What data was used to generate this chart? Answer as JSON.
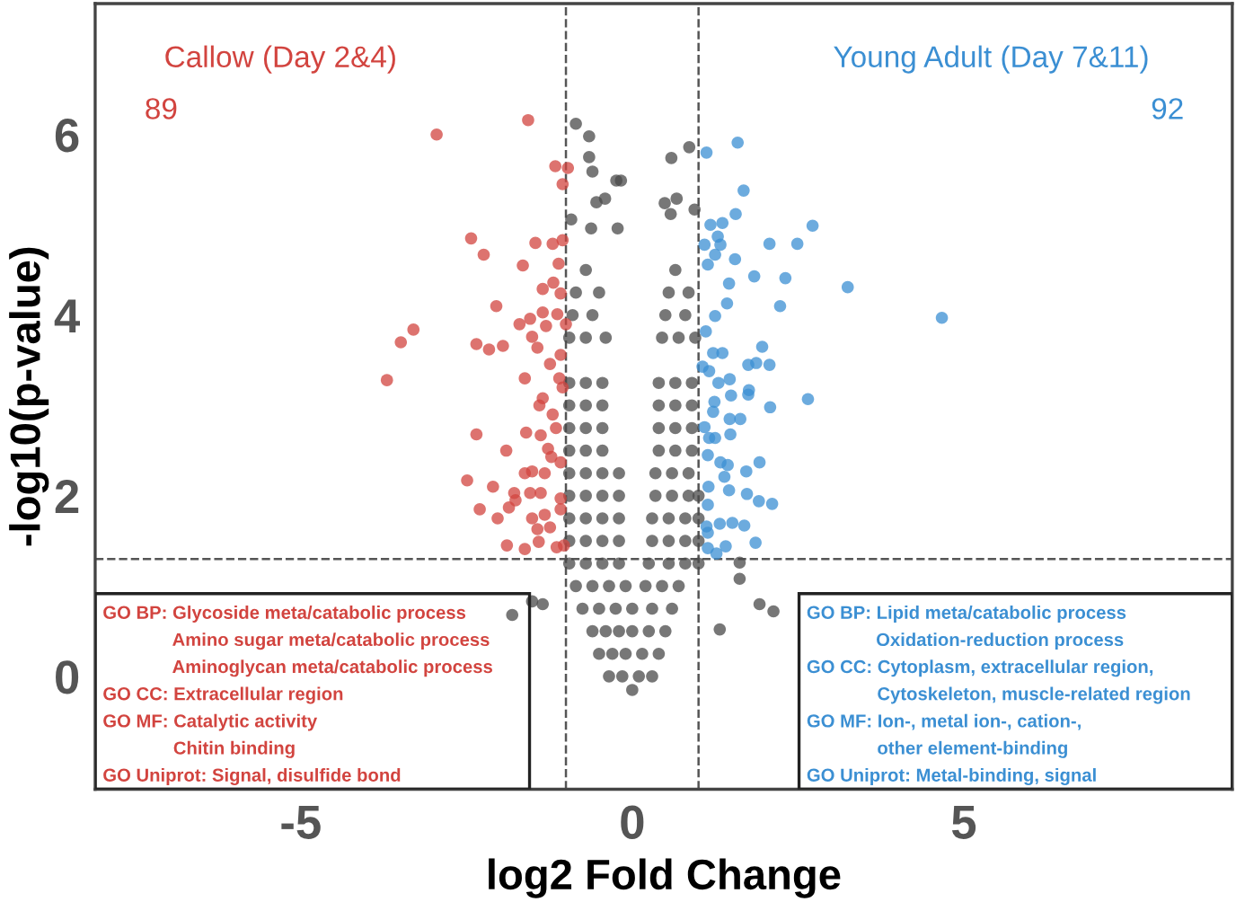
{
  "chart_data": {
    "type": "scatter",
    "xlabel": "log2 Fold Change",
    "ylabel": "-log10(p-value)",
    "xlim": [
      -8.1,
      9.05
    ],
    "ylim": [
      -1.25,
      7.45
    ],
    "xticks": [
      -5,
      0,
      5
    ],
    "yticks": [
      0,
      2,
      4,
      6
    ],
    "grid": false,
    "marker": "circle",
    "ref_lines": [
      {
        "axis": "x",
        "value": -1,
        "color": "#555555",
        "line_style": "dashed"
      },
      {
        "axis": "x",
        "value": 1,
        "color": "#555555",
        "line_style": "dashed"
      },
      {
        "axis": "y",
        "value": 1.3,
        "color": "#555555",
        "line_style": "dashed"
      }
    ],
    "annotations": [
      "Callow (Day 2&4)",
      "89",
      "Young Adult (Day 7&11)",
      "92",
      "GO BP: Glycoside meta/catabolic process\nAmino sugar meta/catabolic process\nAminoglycan meta/catabolic process\nGO CC: Extracellular region\nGO MF: Catalytic activity\nChitin binding\nGO Uniprot: Signal, disulfide bond",
      "GO BP: Lipid meta/catabolic process\nOxidation-reduction process\nGO CC: Cytoplasm, extracellular region,\nCytoskeleton, muscle-related region\nGO MF: Ion-, metal ion-, cation-,\nother element-binding\nGO Uniprot: Metal-binding, signal"
    ],
    "series": [
      {
        "color": "#4a4a4a",
        "x": [
          0.0,
          -0.35,
          -0.15,
          0.1,
          0.3,
          -0.5,
          -0.3,
          -0.1,
          0.15,
          0.4,
          -0.6,
          -0.4,
          -0.2,
          0.0,
          0.25,
          0.5,
          -0.75,
          -0.5,
          -0.25,
          0.0,
          0.3,
          0.6,
          -0.85,
          -0.6,
          -0.35,
          -0.1,
          0.2,
          0.45,
          0.7,
          -0.95,
          -0.7,
          -0.45,
          -0.2,
          0.25,
          0.55,
          0.8,
          1.0,
          -0.95,
          -0.7,
          -0.45,
          -0.2,
          0.3,
          0.55,
          0.8,
          1.0,
          -0.95,
          -0.7,
          -0.45,
          -0.2,
          0.3,
          0.55,
          0.8,
          1.0,
          -0.95,
          -0.7,
          -0.45,
          -0.2,
          0.35,
          0.6,
          0.85,
          1.0,
          -0.95,
          -0.7,
          -0.45,
          -0.2,
          0.35,
          0.6,
          0.85,
          -0.95,
          -0.7,
          -0.45,
          0.4,
          0.65,
          0.9,
          -0.95,
          -0.7,
          -0.45,
          0.4,
          0.65,
          0.9,
          -0.95,
          -0.7,
          -0.45,
          0.4,
          0.65,
          0.9,
          -0.95,
          -0.7,
          -0.45,
          0.4,
          0.65,
          0.9,
          -0.95,
          -0.7,
          -0.4,
          0.45,
          0.7,
          0.95,
          -0.9,
          -0.6,
          0.5,
          0.8,
          -0.85,
          -0.5,
          0.55,
          0.85,
          -0.7,
          0.65,
          -0.85,
          -0.65,
          -0.65,
          -0.6,
          -0.92,
          -0.62,
          -0.54,
          -0.41,
          -0.24,
          0.59,
          0.86,
          0.49,
          0.67,
          0.58,
          0.94,
          -0.17,
          -0.22,
          -1.81,
          -1.51,
          -1.35,
          1.92,
          2.13,
          1.32,
          1.62,
          1.62
        ],
        "values": [
          -0.15,
          0.0,
          0.0,
          0.0,
          0.0,
          0.25,
          0.25,
          0.25,
          0.25,
          0.25,
          0.5,
          0.5,
          0.5,
          0.5,
          0.5,
          0.5,
          0.75,
          0.75,
          0.75,
          0.75,
          0.75,
          0.75,
          1.0,
          1.0,
          1.0,
          1.0,
          1.0,
          1.0,
          1.0,
          1.25,
          1.25,
          1.25,
          1.25,
          1.25,
          1.25,
          1.25,
          1.25,
          1.5,
          1.5,
          1.5,
          1.5,
          1.5,
          1.5,
          1.5,
          1.5,
          1.75,
          1.75,
          1.75,
          1.75,
          1.75,
          1.75,
          1.75,
          1.75,
          2.0,
          2.0,
          2.0,
          2.0,
          2.0,
          2.0,
          2.0,
          2.0,
          2.25,
          2.25,
          2.25,
          2.25,
          2.25,
          2.25,
          2.25,
          2.5,
          2.5,
          2.5,
          2.5,
          2.5,
          2.5,
          2.75,
          2.75,
          2.75,
          2.75,
          2.75,
          2.75,
          3.0,
          3.0,
          3.0,
          3.0,
          3.0,
          3.0,
          3.25,
          3.25,
          3.25,
          3.25,
          3.25,
          3.25,
          3.75,
          3.75,
          3.75,
          3.75,
          3.75,
          3.75,
          4.0,
          4.0,
          4.0,
          4.0,
          4.25,
          4.25,
          4.25,
          4.25,
          4.5,
          4.5,
          6.12,
          5.98,
          5.75,
          5.59,
          5.06,
          4.96,
          5.25,
          5.29,
          5.49,
          5.74,
          5.86,
          5.24,
          5.29,
          5.12,
          5.17,
          5.49,
          4.96,
          0.68,
          0.83,
          0.8,
          0.8,
          0.72,
          0.52,
          1.26,
          1.08
        ]
      },
      {
        "color": "#d2443f",
        "x": [
          -1.57,
          -2.95,
          -1.16,
          -0.97,
          -1.05,
          -2.43,
          -2.24,
          -1.46,
          -1.2,
          -1.05,
          -1.65,
          -1.11,
          -2.05,
          -1.35,
          -1.19,
          -1.08,
          -1.54,
          -1.35,
          -1.13,
          -1.3,
          -3.3,
          -3.49,
          -2.35,
          -2.16,
          -1.95,
          -1.51,
          -1.43,
          -1.24,
          -1.08,
          -3.7,
          -1.62,
          -1.05,
          -1.35,
          -2.35,
          -1.38,
          -1.27,
          -2.49,
          -1.62,
          -1.51,
          -1.32,
          -1.22,
          -1.08,
          -2.3,
          -2.03,
          -1.86,
          -1.78,
          -1.76,
          -1.54,
          -1.38,
          -1.32,
          -1.51,
          -1.24,
          -1.43,
          -1.08,
          -1.08,
          -1.89,
          -1.62,
          -1.41,
          -1.14,
          -1.03,
          -1.9,
          -1.6,
          -2.1,
          -1.2,
          -1.4,
          -1.15,
          -1.1,
          -1.7,
          -1.0
        ],
        "values": [
          6.16,
          6.0,
          5.65,
          5.63,
          5.45,
          4.85,
          4.67,
          4.8,
          4.79,
          4.83,
          4.55,
          4.57,
          4.1,
          4.29,
          4.36,
          4.24,
          3.96,
          4.03,
          4.01,
          3.88,
          3.84,
          3.7,
          3.68,
          3.62,
          3.66,
          3.76,
          3.64,
          3.46,
          3.56,
          3.28,
          3.3,
          3.2,
          3.08,
          2.68,
          2.67,
          2.52,
          2.17,
          2.25,
          2.27,
          2.25,
          2.43,
          2.37,
          1.85,
          1.75,
          1.87,
          2.03,
          1.95,
          2.03,
          2.03,
          1.79,
          1.75,
          1.65,
          1.63,
          1.97,
          1.85,
          1.45,
          1.41,
          1.49,
          1.43,
          1.45,
          2.5,
          2.7,
          2.1,
          2.9,
          3.0,
          2.75,
          3.3,
          3.9,
          3.9
        ]
      },
      {
        "color": "#3b8fd3",
        "x": [
          1.59,
          1.12,
          1.68,
          1.56,
          2.72,
          1.36,
          1.18,
          1.29,
          1.33,
          1.09,
          2.07,
          2.49,
          1.25,
          1.55,
          1.14,
          1.84,
          2.31,
          1.46,
          3.25,
          1.43,
          2.23,
          4.67,
          1.25,
          1.11,
          1.96,
          1.22,
          1.36,
          1.75,
          1.87,
          2.07,
          1.06,
          1.16,
          1.47,
          1.3,
          1.76,
          1.75,
          1.49,
          1.24,
          2.65,
          2.08,
          1.22,
          1.47,
          1.63,
          1.48,
          1.09,
          1.16,
          1.25,
          1.14,
          1.33,
          1.44,
          1.72,
          1.92,
          1.39,
          1.15,
          1.46,
          1.73,
          1.91,
          2.11,
          1.14,
          1.12,
          1.32,
          1.51,
          1.69,
          1.14,
          1.86,
          1.41,
          1.14,
          1.27
        ],
        "values": [
          5.91,
          5.8,
          5.38,
          5.12,
          4.99,
          5.02,
          5.0,
          4.87,
          4.78,
          4.78,
          4.79,
          4.79,
          4.67,
          4.62,
          4.56,
          4.43,
          4.41,
          4.35,
          4.31,
          4.13,
          4.1,
          3.97,
          3.99,
          3.82,
          3.65,
          3.58,
          3.58,
          3.45,
          3.47,
          3.45,
          3.43,
          3.38,
          3.29,
          3.25,
          3.17,
          3.12,
          3.11,
          3.04,
          3.07,
          2.98,
          2.93,
          2.85,
          2.85,
          2.68,
          2.76,
          2.64,
          2.64,
          2.45,
          2.37,
          2.34,
          2.27,
          2.37,
          2.21,
          2.1,
          2.06,
          2.02,
          1.94,
          1.91,
          1.9,
          1.66,
          1.69,
          1.7,
          1.67,
          1.59,
          1.48,
          1.44,
          1.42,
          1.36
        ]
      }
    ]
  }
}
